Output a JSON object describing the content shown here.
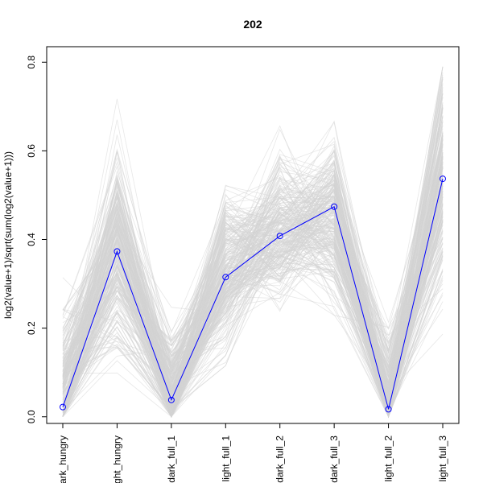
{
  "chart_data": {
    "type": "line",
    "title": "202",
    "xlabel": "",
    "ylabel": "log2(value+1)/sqrt(sum(log2(value+1)))",
    "categories": [
      "dark_hungry",
      "light_hungry",
      "dark_full_1",
      "light_full_1",
      "dark_full_2",
      "dark_full_3",
      "light_full_2",
      "light_full_3"
    ],
    "tick_labels": [
      "ark_hungry",
      "ght_hungry",
      "dark_full_1",
      "light_full_1",
      "dark_full_2",
      "dark_full_3",
      "light_full_2",
      "light_full_3"
    ],
    "ylim": [
      0.0,
      0.8
    ],
    "yticks": [
      0.0,
      0.2,
      0.4,
      0.6,
      0.8
    ],
    "yticklabels": [
      "0.0",
      "0.2",
      "0.4",
      "0.6",
      "0.8"
    ],
    "grid": false,
    "background_lines": {
      "count": 260,
      "color": "#d3d3d3",
      "mean": [
        0.05,
        0.38,
        0.05,
        0.33,
        0.42,
        0.46,
        0.04,
        0.55
      ],
      "spread": [
        0.09,
        0.11,
        0.07,
        0.09,
        0.08,
        0.09,
        0.07,
        0.12
      ]
    },
    "series": [
      {
        "values": [
          0.022,
          0.373,
          0.038,
          0.315,
          0.408,
          0.474,
          0.017,
          0.537
        ],
        "color": "#0000ff",
        "marker": "open-circle"
      }
    ]
  }
}
